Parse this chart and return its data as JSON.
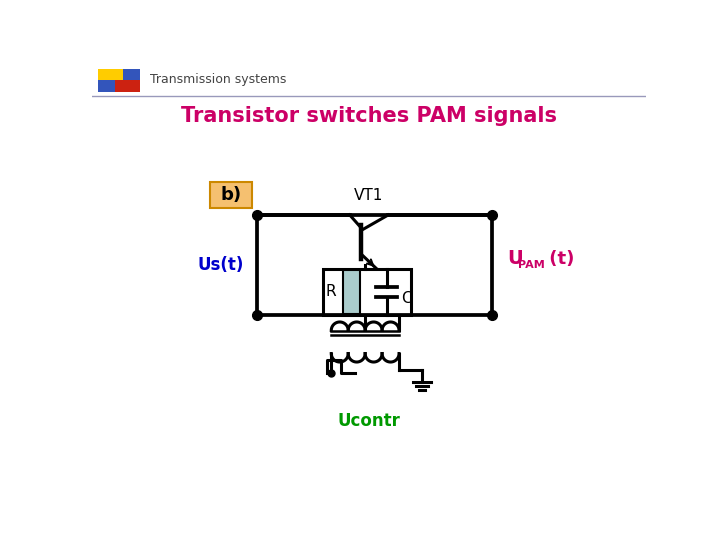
{
  "title": "Transistor switches PAM signals",
  "title_color": "#cc0066",
  "header_text": "Transmission systems",
  "header_color": "#444444",
  "label_b_text": "b)",
  "label_b_bg": "#f5c070",
  "label_b_border": "#cc8800",
  "label_vt1": "VT1",
  "label_us": "Us(t)",
  "label_us_color": "#0000cc",
  "label_upam_color": "#cc0066",
  "label_r": "R",
  "label_c": "C",
  "label_ucontr": "Ucontr",
  "label_ucontr_color": "#009900",
  "line_color": "#000000",
  "line_width": 2.2,
  "dot_size": 7,
  "resistor_fill": "#aacccc"
}
